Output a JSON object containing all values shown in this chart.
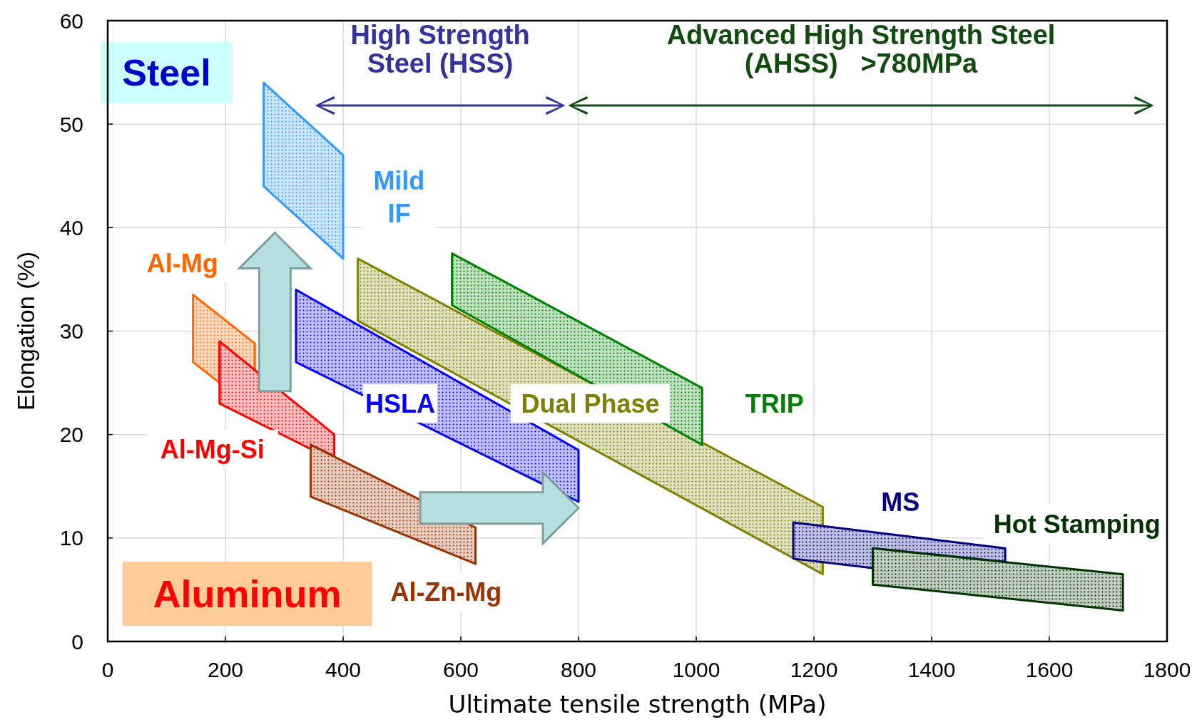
{
  "chart_data": {
    "type": "area",
    "xlabel": "Ultimate tensile strength (MPa)",
    "ylabel": "Elongation (%)",
    "xlim": [
      0,
      1800
    ],
    "xticks": [
      0,
      200,
      400,
      600,
      800,
      1000,
      1200,
      1400,
      1600,
      1800
    ],
    "ylim": [
      0,
      60
    ],
    "yticks": [
      0,
      10,
      20,
      30,
      40,
      50,
      60
    ],
    "grid": true,
    "legend": false,
    "marker": "none",
    "series": [
      {
        "name": "Mild\nIF",
        "color": "#3399ff",
        "x": [
          265,
          400,
          400,
          265,
          265
        ],
        "values": [
          54,
          47,
          37,
          44,
          54
        ]
      },
      {
        "name": "HSLA",
        "color": "#0000ff",
        "x": [
          320,
          800,
          800,
          320,
          320
        ],
        "values": [
          34,
          18.5,
          13.5,
          27,
          34
        ]
      },
      {
        "name": "Dual Phase",
        "color": "#808000",
        "x": [
          425,
          1215,
          1215,
          425,
          425
        ],
        "values": [
          37,
          13,
          6.5,
          31,
          37
        ]
      },
      {
        "name": "TRIP",
        "color": "#008000",
        "x": [
          585,
          1010,
          1010,
          585,
          585
        ],
        "values": [
          37.5,
          24.5,
          19,
          32.5,
          37.5
        ]
      },
      {
        "name": "MS",
        "color": "#000080",
        "x": [
          1165,
          1525,
          1525,
          1300,
          1300,
          1165,
          1165
        ],
        "values": [
          11.5,
          9,
          7.7,
          9,
          7.1,
          8,
          11.5
        ]
      },
      {
        "name": "Hot Stamping",
        "color": "#003300",
        "x": [
          1300,
          1725,
          1725,
          1300,
          1300
        ],
        "values": [
          9,
          6.5,
          3,
          5.5,
          9
        ]
      },
      {
        "name": "Al-Mg",
        "color": "#ff6600",
        "x": [
          145,
          250,
          250,
          190,
          190,
          145,
          145
        ],
        "values": [
          33.5,
          28.8,
          26.2,
          29,
          25,
          27,
          33.5
        ]
      },
      {
        "name": "Al-Mg-Si",
        "color": "#ff0000",
        "x": [
          190,
          385,
          385,
          345,
          345,
          190,
          190
        ],
        "values": [
          29,
          20,
          17.9,
          19,
          18.6,
          23,
          29
        ]
      },
      {
        "name": "Al-Zn-Mg",
        "color": "#993300",
        "x": [
          345,
          625,
          625,
          345,
          345
        ],
        "values": [
          19,
          11,
          7.5,
          14,
          19
        ]
      }
    ],
    "annotations": [
      "Steel",
      "Aluminum",
      "High Strength\nSteel (HSS)",
      "Advanced High Strength Steel\n(AHSS)   >780MPa"
    ]
  }
}
